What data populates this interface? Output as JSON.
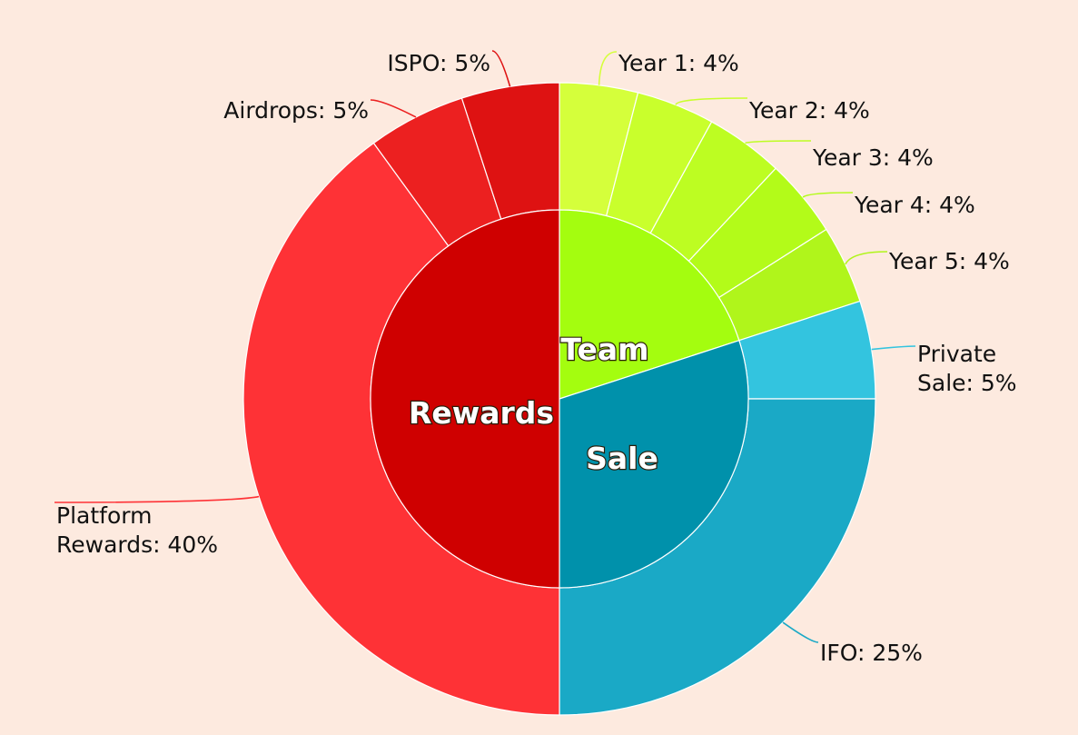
{
  "chart_data": {
    "type": "sunburst",
    "unit": "%",
    "inner": [
      {
        "name": "Team",
        "value": 20,
        "color": "#a4fd0f"
      },
      {
        "name": "Sale",
        "value": 30,
        "color": "#0091ab"
      },
      {
        "name": "Rewards",
        "value": 50,
        "color": "#cf0000"
      }
    ],
    "outer": [
      {
        "parent": "Team",
        "label": "Year 1: 4%",
        "value": 4,
        "color": "#d5ff3b"
      },
      {
        "parent": "Team",
        "label": "Year 2: 4%",
        "value": 4,
        "color": "#c9ff2c"
      },
      {
        "parent": "Team",
        "label": "Year 3: 4%",
        "value": 4,
        "color": "#bdfd22"
      },
      {
        "parent": "Team",
        "label": "Year 4: 4%",
        "value": 4,
        "color": "#b3fb19"
      },
      {
        "parent": "Team",
        "label": "Year 5: 4%",
        "value": 4,
        "color": "#b0f51b"
      },
      {
        "parent": "Sale",
        "label": "Private Sale: 5%",
        "value": 5,
        "color": "#33c4df"
      },
      {
        "parent": "Sale",
        "label": "IFO: 25%",
        "value": 25,
        "color": "#1aa9c6"
      },
      {
        "parent": "Rewards",
        "label": "Platform Rewards: 40%",
        "value": 40,
        "color": "#fe3236"
      },
      {
        "parent": "Rewards",
        "label": "Airdrops: 5%",
        "value": 5,
        "color": "#ec2020"
      },
      {
        "parent": "Rewards",
        "label": "ISPO: 5%",
        "value": 5,
        "color": "#de1212"
      }
    ]
  }
}
